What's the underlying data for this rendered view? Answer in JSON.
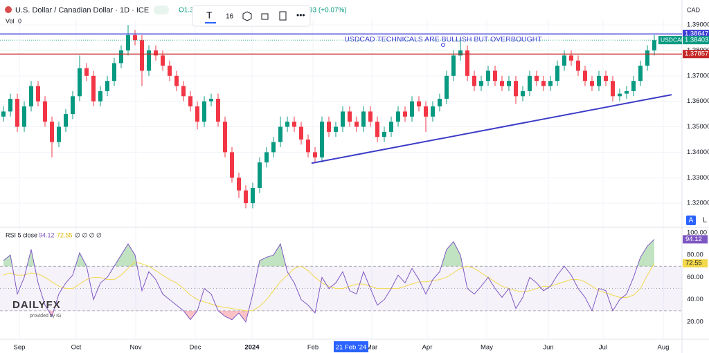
{
  "header": {
    "symbol": "U.S. Dollar / Canadian Dollar · 1D · ICE",
    "ohlc_partial": "O1.3",
    "change_partial": "93 (+0.07%)",
    "volume_label": "Vol",
    "volume_value": "0",
    "currency": "CAD",
    "toolbar_font_size": "16"
  },
  "chart_data": {
    "type": "candlestick",
    "open": [
      1.354,
      1.356,
      1.361,
      1.35,
      1.358,
      1.366,
      1.36,
      1.352,
      1.344,
      1.35,
      1.355,
      1.362,
      1.373,
      1.37,
      1.36,
      1.364,
      1.368,
      1.375,
      1.38,
      1.386,
      1.384,
      1.372,
      1.38,
      1.378,
      1.374,
      1.37,
      1.366,
      1.362,
      1.358,
      1.352,
      1.36,
      1.361,
      1.352,
      1.34,
      1.33,
      1.325,
      1.32,
      1.326,
      1.336,
      1.34,
      1.344,
      1.35,
      1.352,
      1.35,
      1.345,
      1.34,
      1.338,
      1.352,
      1.348,
      1.35,
      1.356,
      1.352,
      1.35,
      1.356,
      1.352,
      1.346,
      1.348,
      1.352,
      1.356,
      1.354,
      1.36,
      1.358,
      1.354,
      1.358,
      1.361,
      1.37,
      1.378,
      1.38,
      1.37,
      1.366,
      1.368,
      1.372,
      1.368,
      1.366,
      1.368,
      1.362,
      1.364,
      1.37,
      1.368,
      1.366,
      1.368,
      1.374,
      1.378,
      1.376,
      1.372,
      1.368,
      1.366,
      1.37,
      1.368,
      1.362,
      1.363,
      1.364,
      1.368,
      1.374,
      1.38
    ],
    "high": [
      1.358,
      1.363,
      1.363,
      1.36,
      1.368,
      1.368,
      1.362,
      1.354,
      1.352,
      1.357,
      1.364,
      1.378,
      1.375,
      1.372,
      1.366,
      1.37,
      1.377,
      1.382,
      1.39,
      1.388,
      1.386,
      1.382,
      1.382,
      1.38,
      1.376,
      1.372,
      1.368,
      1.364,
      1.36,
      1.362,
      1.363,
      1.363,
      1.354,
      1.342,
      1.332,
      1.327,
      1.328,
      1.338,
      1.342,
      1.346,
      1.354,
      1.354,
      1.354,
      1.352,
      1.347,
      1.342,
      1.354,
      1.354,
      1.352,
      1.358,
      1.358,
      1.354,
      1.358,
      1.358,
      1.354,
      1.35,
      1.354,
      1.358,
      1.358,
      1.362,
      1.362,
      1.36,
      1.36,
      1.363,
      1.372,
      1.38,
      1.385,
      1.382,
      1.372,
      1.37,
      1.374,
      1.374,
      1.37,
      1.37,
      1.37,
      1.366,
      1.372,
      1.372,
      1.37,
      1.37,
      1.376,
      1.38,
      1.38,
      1.378,
      1.374,
      1.37,
      1.372,
      1.372,
      1.37,
      1.365,
      1.366,
      1.37,
      1.376,
      1.382,
      1.386
    ],
    "low": [
      1.352,
      1.354,
      1.348,
      1.348,
      1.356,
      1.358,
      1.35,
      1.338,
      1.342,
      1.348,
      1.353,
      1.36,
      1.368,
      1.358,
      1.358,
      1.362,
      1.366,
      1.373,
      1.378,
      1.382,
      1.366,
      1.37,
      1.376,
      1.372,
      1.368,
      1.364,
      1.36,
      1.356,
      1.349,
      1.35,
      1.358,
      1.35,
      1.338,
      1.328,
      1.322,
      1.318,
      1.318,
      1.324,
      1.334,
      1.338,
      1.342,
      1.348,
      1.348,
      1.343,
      1.338,
      1.336,
      1.336,
      1.346,
      1.346,
      1.348,
      1.35,
      1.348,
      1.348,
      1.35,
      1.344,
      1.344,
      1.346,
      1.35,
      1.352,
      1.352,
      1.356,
      1.348,
      1.352,
      1.356,
      1.359,
      1.368,
      1.376,
      1.368,
      1.364,
      1.364,
      1.366,
      1.366,
      1.364,
      1.364,
      1.359,
      1.36,
      1.362,
      1.366,
      1.364,
      1.364,
      1.366,
      1.372,
      1.374,
      1.37,
      1.366,
      1.364,
      1.364,
      1.366,
      1.36,
      1.36,
      1.361,
      1.362,
      1.366,
      1.372,
      1.378
    ],
    "close": [
      1.356,
      1.361,
      1.35,
      1.358,
      1.366,
      1.36,
      1.352,
      1.344,
      1.35,
      1.355,
      1.362,
      1.373,
      1.37,
      1.36,
      1.364,
      1.368,
      1.375,
      1.38,
      1.386,
      1.384,
      1.372,
      1.38,
      1.378,
      1.374,
      1.37,
      1.366,
      1.362,
      1.358,
      1.352,
      1.36,
      1.361,
      1.352,
      1.34,
      1.33,
      1.325,
      1.32,
      1.326,
      1.336,
      1.34,
      1.344,
      1.35,
      1.352,
      1.35,
      1.345,
      1.34,
      1.338,
      1.352,
      1.348,
      1.35,
      1.356,
      1.352,
      1.35,
      1.356,
      1.352,
      1.346,
      1.348,
      1.352,
      1.356,
      1.354,
      1.36,
      1.358,
      1.354,
      1.358,
      1.361,
      1.37,
      1.378,
      1.38,
      1.37,
      1.366,
      1.368,
      1.372,
      1.368,
      1.366,
      1.368,
      1.362,
      1.364,
      1.37,
      1.368,
      1.366,
      1.368,
      1.374,
      1.378,
      1.376,
      1.372,
      1.368,
      1.366,
      1.37,
      1.368,
      1.362,
      1.363,
      1.364,
      1.368,
      1.374,
      1.38,
      1.384
    ],
    "colors": {
      "up": "#089981",
      "down": "#f23645"
    },
    "xlim": [
      -0.5,
      98
    ],
    "xticks": [
      {
        "value": 2.3,
        "label": "Sep"
      },
      {
        "value": 10.5,
        "label": "Oct"
      },
      {
        "value": 19.1,
        "label": "Nov"
      },
      {
        "value": 27.7,
        "label": "Dec"
      },
      {
        "value": 35.9,
        "label": "2024"
      },
      {
        "value": 44.7,
        "label": "Feb"
      },
      {
        "value": 53.2,
        "label": "Mar"
      },
      {
        "value": 61.2,
        "label": "Apr"
      },
      {
        "value": 69.8,
        "label": "May"
      },
      {
        "value": 78.7,
        "label": "Jun"
      },
      {
        "value": 86.6,
        "label": "Jul"
      },
      {
        "value": 95.3,
        "label": "Aug"
      }
    ],
    "crosshair_date": {
      "value": 50.2,
      "label": "21 Feb '24"
    },
    "ylim": [
      1.3108,
      1.3922
    ],
    "yticks": [
      {
        "value": 1.39,
        "label": "1.39000"
      },
      {
        "value": 1.38,
        "label": "1.38000"
      },
      {
        "value": 1.37,
        "label": "1.37000"
      },
      {
        "value": 1.36,
        "label": "1.36000"
      },
      {
        "value": 1.35,
        "label": "1.35000"
      },
      {
        "value": 1.34,
        "label": "1.34000"
      },
      {
        "value": 1.33,
        "label": "1.33000"
      },
      {
        "value": 1.32,
        "label": "1.32000"
      }
    ],
    "annotation": "USDCAD TECHNICALS ARE BULLISH BUT OVERBOUGHT",
    "levels": [
      {
        "value": 1.38647,
        "label": "1.38647",
        "color": "#3d3dd6"
      },
      {
        "value": 1.37857,
        "label": "1.37857",
        "color": "#c62828"
      }
    ],
    "last_price": {
      "value": 1.38403,
      "label": "1.38403",
      "name": "USDCAD",
      "color": "#089981"
    },
    "trendline": {
      "x": [
        44.5,
        96.5
      ],
      "y": [
        1.3357,
        1.3626
      ],
      "color": "#3c3cc8"
    },
    "rsi": {
      "title": "RSI 5 close",
      "value_label": "94.12",
      "ma_label": "72.55",
      "extra": "∅ ∅ ∅ ∅",
      "color": "#7e57c2",
      "ma_color": "#f2d84a",
      "values": [
        75,
        80,
        45,
        60,
        85,
        55,
        35,
        25,
        45,
        55,
        62,
        82,
        70,
        40,
        55,
        60,
        70,
        80,
        90,
        80,
        48,
        65,
        58,
        45,
        40,
        35,
        30,
        22,
        30,
        50,
        45,
        30,
        25,
        22,
        28,
        20,
        45,
        75,
        78,
        80,
        90,
        65,
        55,
        40,
        35,
        28,
        60,
        50,
        55,
        65,
        48,
        45,
        65,
        50,
        35,
        40,
        50,
        62,
        55,
        68,
        58,
        45,
        58,
        65,
        85,
        92,
        80,
        50,
        45,
        52,
        60,
        50,
        42,
        50,
        32,
        42,
        60,
        55,
        48,
        52,
        62,
        70,
        62,
        50,
        42,
        30,
        50,
        48,
        30,
        40,
        45,
        60,
        78,
        88,
        94.12
      ],
      "ma": [
        62,
        64,
        62,
        62,
        64,
        63,
        60,
        56,
        52,
        50,
        50,
        54,
        58,
        60,
        60,
        58,
        58,
        62,
        68,
        74,
        72,
        70,
        66,
        62,
        58,
        55,
        50,
        44,
        40,
        38,
        36,
        34,
        33,
        32,
        31,
        30,
        30,
        34,
        40,
        48,
        56,
        62,
        68,
        70,
        66,
        60,
        55,
        52,
        50,
        50,
        52,
        54,
        54,
        52,
        50,
        50,
        50,
        50,
        52,
        54,
        56,
        56,
        57,
        58,
        60,
        64,
        68,
        70,
        68,
        64,
        60,
        56,
        52,
        50,
        48,
        47,
        48,
        50,
        52,
        52,
        54,
        56,
        58,
        58,
        56,
        52,
        48,
        46,
        44,
        42,
        42,
        44,
        50,
        62,
        72.55
      ],
      "ylim": [
        5.1,
        104.3
      ],
      "yticks": [
        {
          "value": 100,
          "label": "100.00"
        },
        {
          "value": 80,
          "label": "80.00"
        },
        {
          "value": 60,
          "label": "60.00"
        },
        {
          "value": 40,
          "label": "40.00"
        },
        {
          "value": 20,
          "label": "20.00"
        }
      ],
      "bands": [
        30,
        50,
        70
      ]
    },
    "scale_buttons": [
      "A",
      "L"
    ],
    "logo": {
      "brand": "DAILYFX",
      "provider": "provided by IG"
    }
  }
}
